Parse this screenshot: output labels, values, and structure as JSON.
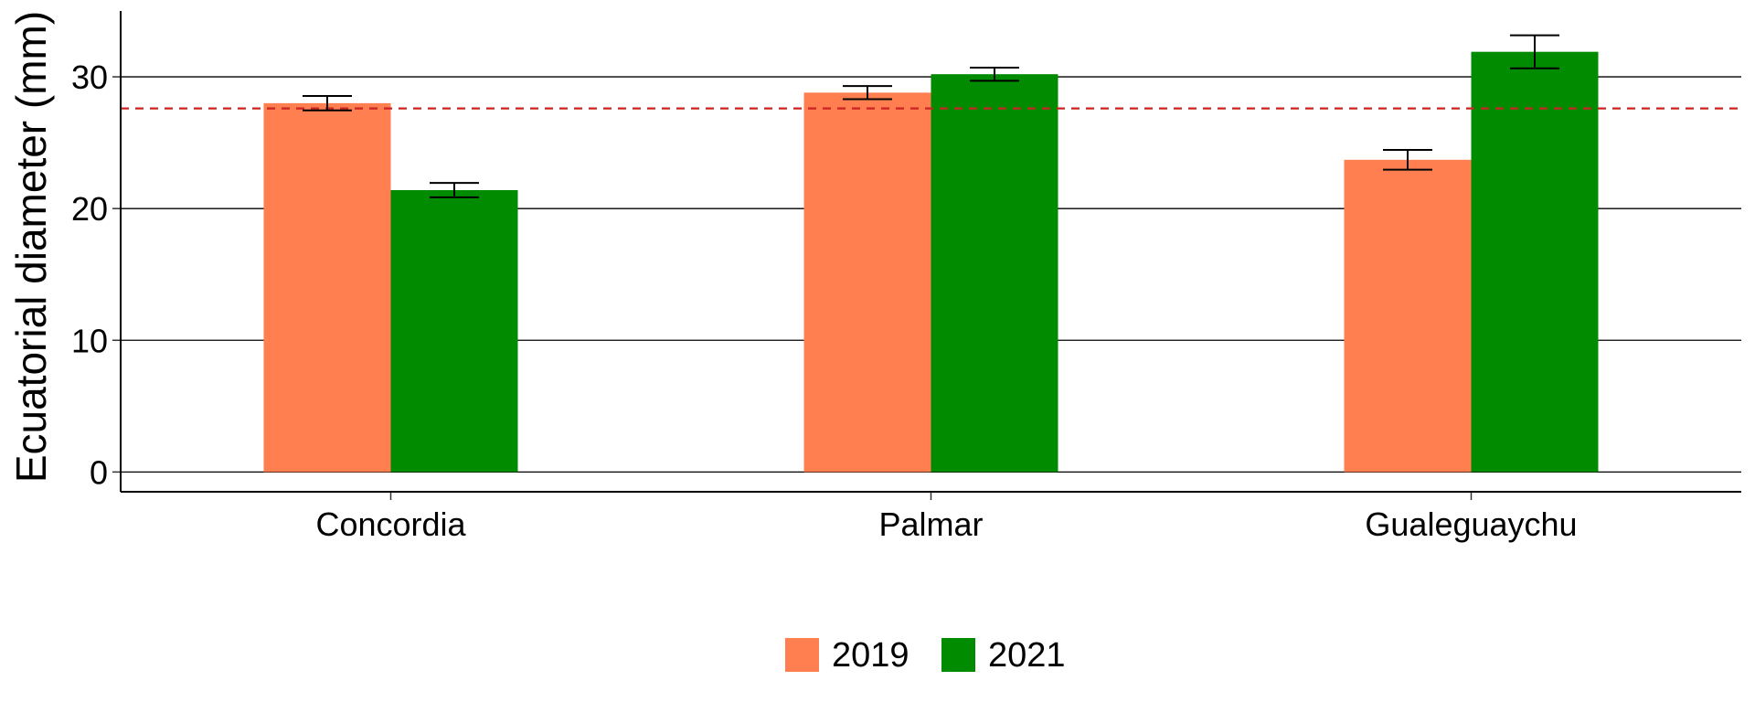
{
  "chart_data": {
    "type": "bar",
    "title": "",
    "xlabel": "",
    "ylabel": "Ecuatorial diameter (mm)",
    "categories": [
      "Concordia",
      "Palmar",
      "Gualeguaychu"
    ],
    "series": [
      {
        "name": "2019",
        "color": "#ff7f50",
        "values": [
          28.0,
          28.8,
          23.7
        ],
        "errors": [
          0.55,
          0.5,
          0.75
        ]
      },
      {
        "name": "2021",
        "color": "#008b00",
        "values": [
          21.4,
          30.2,
          31.9
        ],
        "errors": [
          0.55,
          0.5,
          1.25
        ]
      }
    ],
    "yticks": [
      0,
      10,
      20,
      30
    ],
    "ylim": [
      -1.5,
      35
    ],
    "reference_line": {
      "y": 27.6,
      "style": "dashed",
      "color": "#cc2222"
    },
    "grid": "horizontal-major",
    "legend_position": "bottom"
  }
}
